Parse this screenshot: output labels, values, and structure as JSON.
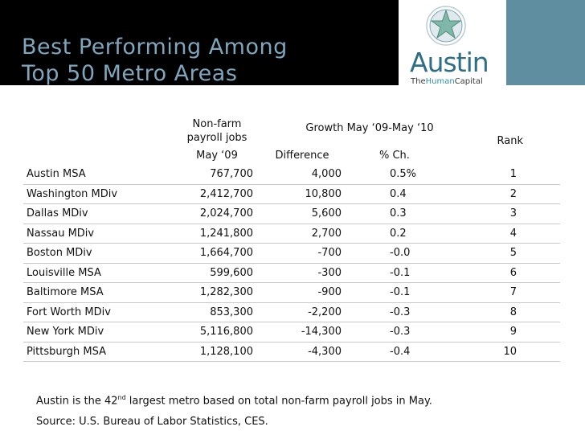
{
  "title_line1": "Best Performing Among",
  "title_line2": "Top 50 Metro Areas",
  "logo": {
    "word": "Austin",
    "sub_the": "The",
    "sub_human": "Human",
    "sub_capital": "Capital",
    "icon": "star-emblem-icon"
  },
  "colors": {
    "title": "#7fa6bd",
    "band": "#5f8ea1",
    "logo": "#2f6f86"
  },
  "table": {
    "headers": {
      "jobs_line1": "Non-farm",
      "jobs_line2": "payroll jobs",
      "growth": "Growth May ‘09-May ‘10",
      "rank": "Rank",
      "jobs_sub": "May ‘09",
      "diff": "Difference",
      "pct": "% Ch."
    },
    "rows": [
      {
        "name": "Austin MSA",
        "jobs": "767,700",
        "diff": "4,000",
        "pct": "0.5%",
        "rank": "1"
      },
      {
        "name": "Washington MDiv",
        "jobs": "2,412,700",
        "diff": "10,800",
        "pct": "0.4",
        "rank": "2"
      },
      {
        "name": "Dallas MDiv",
        "jobs": "2,024,700",
        "diff": "5,600",
        "pct": "0.3",
        "rank": "3"
      },
      {
        "name": "Nassau MDiv",
        "jobs": "1,241,800",
        "diff": "2,700",
        "pct": "0.2",
        "rank": "4"
      },
      {
        "name": "Boston MDiv",
        "jobs": "1,664,700",
        "diff": "-700",
        "pct": "-0.0",
        "rank": "5"
      },
      {
        "name": "Louisville MSA",
        "jobs": "599,600",
        "diff": "-300",
        "pct": "-0.1",
        "rank": "6"
      },
      {
        "name": "Baltimore MSA",
        "jobs": "1,282,300",
        "diff": "-900",
        "pct": "-0.1",
        "rank": "7"
      },
      {
        "name": "Fort Worth MDiv",
        "jobs": "853,300",
        "diff": "-2,200",
        "pct": "-0.3",
        "rank": "8"
      },
      {
        "name": "New York MDiv",
        "jobs": "5,116,800",
        "diff": "-14,300",
        "pct": "-0.3",
        "rank": "9"
      },
      {
        "name": "Pittsburgh MSA",
        "jobs": "1,128,100",
        "diff": "-4,300",
        "pct": "-0.4",
        "rank": "10"
      }
    ]
  },
  "note": {
    "pre": "Austin is the 42",
    "sup": "nd",
    "post": " largest metro based on total non-farm payroll jobs in May."
  },
  "source": "Source:  U.S. Bureau of Labor Statistics, CES."
}
